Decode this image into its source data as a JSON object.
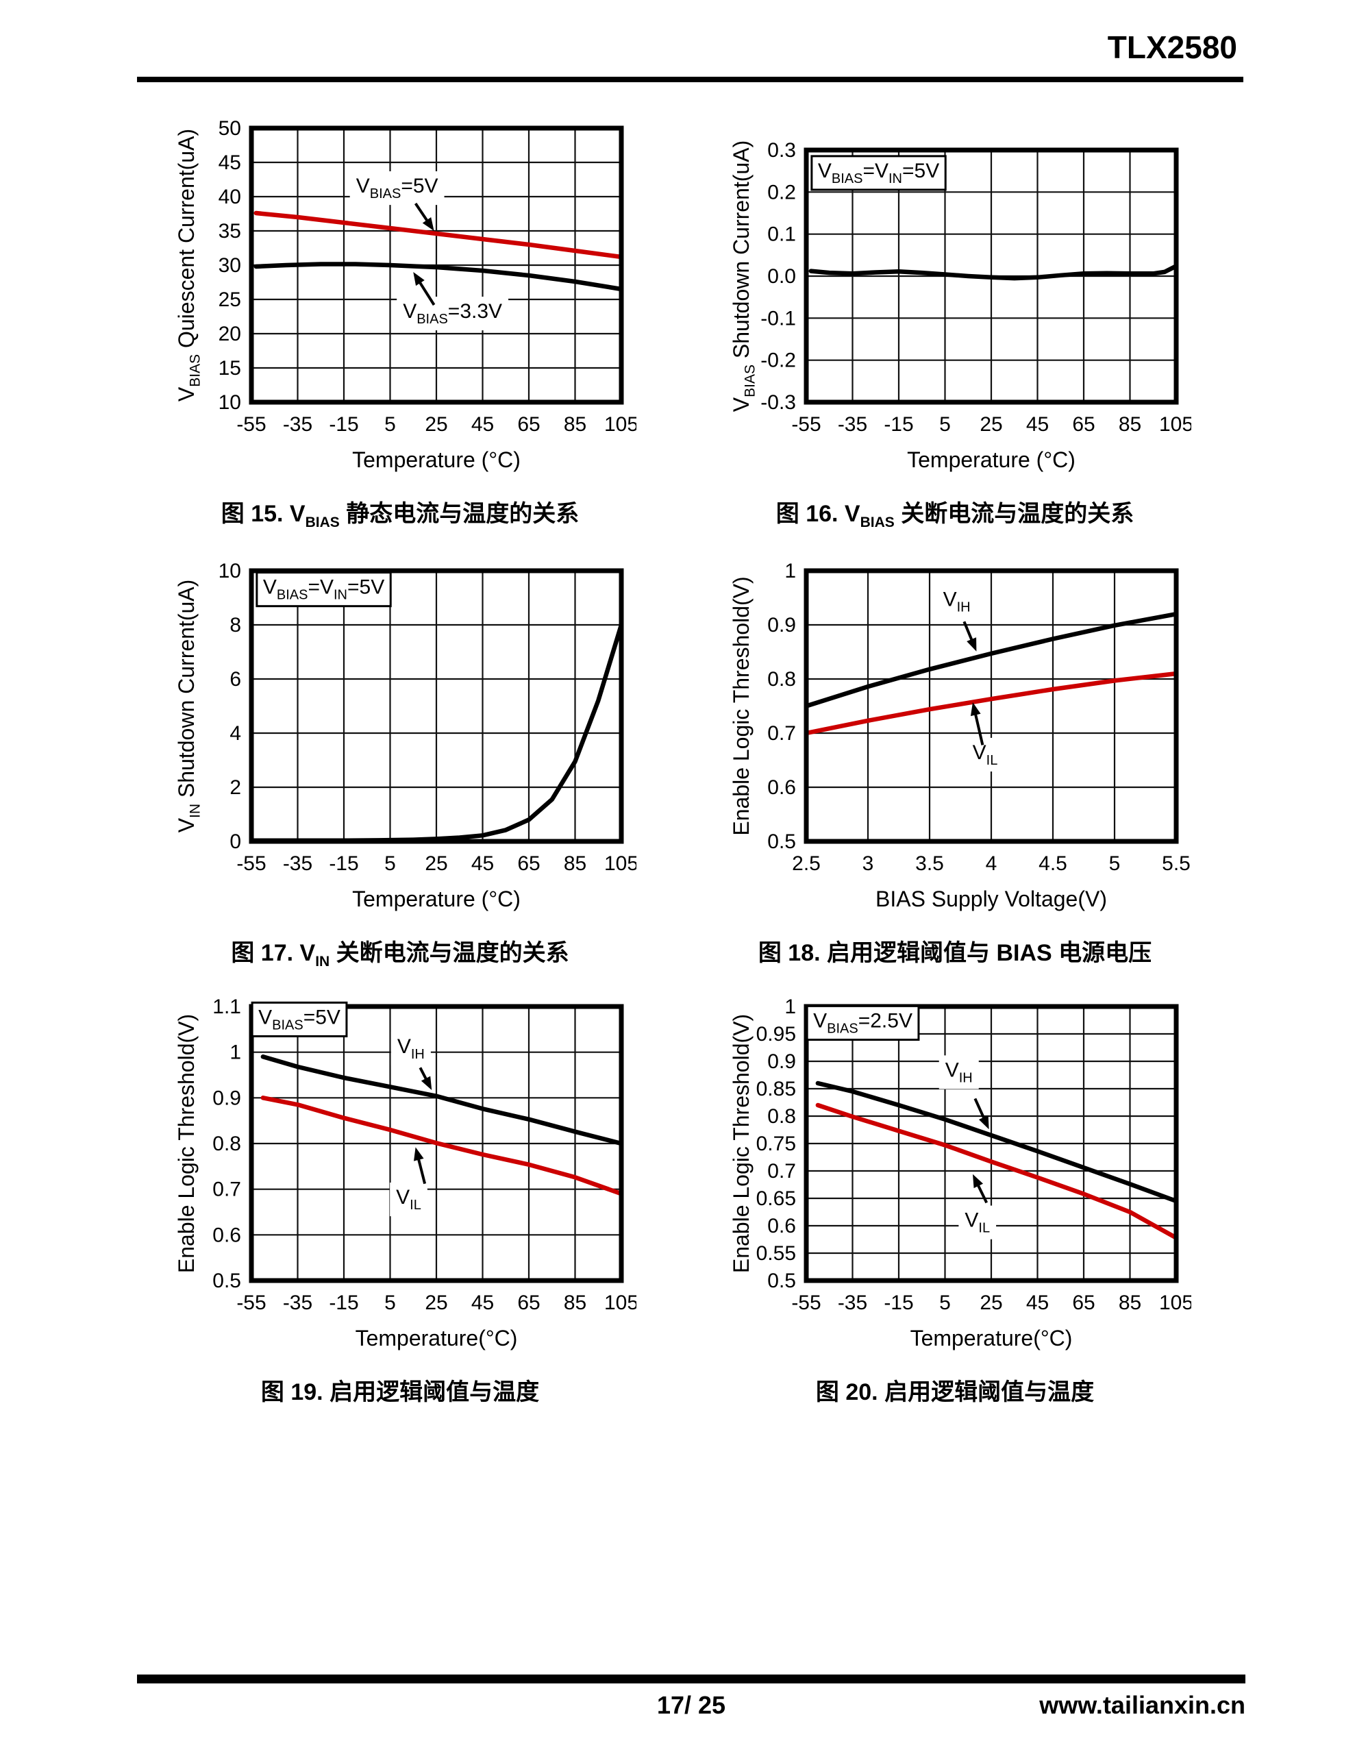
{
  "header": {
    "title": "TLX2580"
  },
  "footer": {
    "page_number": "17/ 25",
    "website": "www.tailianxin.cn"
  },
  "colors": {
    "curve_red": "#cc0000",
    "curve_black": "#000000",
    "grid": "#111111"
  },
  "chart_data": [
    {
      "id": "fig15",
      "type": "line",
      "caption": [
        {
          "t": "图 15. V"
        },
        {
          "t": "BIAS",
          "sub": true
        },
        {
          "t": " 静态电流与温度的关系"
        }
      ],
      "xlabel": "Temperature (°C)",
      "ylabel": [
        {
          "t": "V"
        },
        {
          "t": "BIAS",
          "sub": true
        },
        {
          "t": " Quiescent Current(uA)"
        }
      ],
      "xlim": [
        -55,
        105
      ],
      "ylim": [
        10,
        50
      ],
      "xticks": [
        "-55",
        "-35",
        "-15",
        "5",
        "25",
        "45",
        "65",
        "85",
        "105"
      ],
      "yticks": [
        "10",
        "15",
        "20",
        "25",
        "30",
        "35",
        "40",
        "45",
        "50"
      ],
      "series": [
        {
          "name": "VBIAS=5V",
          "color": "#cc0000",
          "points": [
            [
              -53,
              37.6
            ],
            [
              -35,
              37.0
            ],
            [
              -15,
              36.2
            ],
            [
              5,
              35.4
            ],
            [
              25,
              34.6
            ],
            [
              45,
              33.8
            ],
            [
              65,
              33.0
            ],
            [
              85,
              32.1
            ],
            [
              105,
              31.2
            ]
          ]
        },
        {
          "name": "VBIAS=3.3V",
          "color": "#000000",
          "points": [
            [
              -53,
              29.8
            ],
            [
              -40,
              30.0
            ],
            [
              -25,
              30.15
            ],
            [
              -10,
              30.15
            ],
            [
              5,
              30.0
            ],
            [
              25,
              29.7
            ],
            [
              45,
              29.2
            ],
            [
              65,
              28.5
            ],
            [
              85,
              27.6
            ],
            [
              105,
              26.5
            ]
          ]
        }
      ],
      "annotations": [
        {
          "label": "VBIAS=5V",
          "segments": [
            {
              "t": "V"
            },
            {
              "t": "BIAS",
              "sub": true
            },
            {
              "t": "=5V"
            }
          ],
          "x": 8,
          "y": 40.6,
          "anchor": "middle",
          "boxed": false,
          "arrow": [
            16,
            39.0,
            24,
            35.0
          ]
        },
        {
          "label": "VBIAS=3.3V",
          "segments": [
            {
              "t": "V"
            },
            {
              "t": "BIAS",
              "sub": true
            },
            {
              "t": "=3.3V"
            }
          ],
          "x": 32,
          "y": 22.3,
          "anchor": "middle",
          "boxed": false,
          "arrow": [
            24,
            24.2,
            15,
            29.0
          ]
        }
      ]
    },
    {
      "id": "fig16",
      "type": "line",
      "caption": [
        {
          "t": "图 16. V"
        },
        {
          "t": "BIAS",
          "sub": true
        },
        {
          "t": " 关断电流与温度的关系"
        }
      ],
      "xlabel": "Temperature (°C)",
      "ylabel": [
        {
          "t": "V"
        },
        {
          "t": "BIAS",
          "sub": true
        },
        {
          "t": " Shutdown Current(uA)"
        }
      ],
      "xlim": [
        -55,
        105
      ],
      "ylim": [
        -0.3,
        0.3
      ],
      "xticks": [
        "-55",
        "-35",
        "-15",
        "5",
        "25",
        "45",
        "65",
        "85",
        "105"
      ],
      "yticks": [
        "-0.3",
        "-0.2",
        "-0.1",
        "0.0",
        "0.1",
        "0.2",
        "0.3"
      ],
      "series": [
        {
          "name": "VBIAS shutdown current",
          "color": "#000000",
          "points": [
            [
              -53,
              0.012
            ],
            [
              -45,
              0.008
            ],
            [
              -35,
              0.006
            ],
            [
              -25,
              0.009
            ],
            [
              -15,
              0.011
            ],
            [
              -5,
              0.008
            ],
            [
              5,
              0.004
            ],
            [
              15,
              0.0
            ],
            [
              25,
              -0.003
            ],
            [
              35,
              -0.005
            ],
            [
              45,
              -0.003
            ],
            [
              55,
              0.002
            ],
            [
              65,
              0.006
            ],
            [
              75,
              0.007
            ],
            [
              85,
              0.006
            ],
            [
              95,
              0.006
            ],
            [
              100,
              0.01
            ],
            [
              105,
              0.024
            ]
          ]
        }
      ],
      "annotations": [
        {
          "label": "VBIAS=VIN=5V",
          "segments": [
            {
              "t": "V"
            },
            {
              "t": "BIAS",
              "sub": true
            },
            {
              "t": "=V"
            },
            {
              "t": "IN",
              "sub": true
            },
            {
              "t": "=5V"
            }
          ],
          "x": -50,
          "y": 0.235,
          "anchor": "start",
          "boxed": true
        }
      ]
    },
    {
      "id": "fig17",
      "type": "line",
      "caption": [
        {
          "t": "图 17. V"
        },
        {
          "t": "IN",
          "sub": true
        },
        {
          "t": " 关断电流与温度的关系"
        }
      ],
      "xlabel": "Temperature (°C)",
      "ylabel": [
        {
          "t": "V"
        },
        {
          "t": "IN",
          "sub": true
        },
        {
          "t": " Shutdown Current(uA)"
        }
      ],
      "xlim": [
        -55,
        105
      ],
      "ylim": [
        0,
        10
      ],
      "xticks": [
        "-55",
        "-35",
        "-15",
        "5",
        "25",
        "45",
        "65",
        "85",
        "105"
      ],
      "yticks": [
        "0",
        "2",
        "4",
        "6",
        "8",
        "10"
      ],
      "series": [
        {
          "name": "VIN shutdown current",
          "color": "#000000",
          "points": [
            [
              -55,
              0.03
            ],
            [
              -35,
              0.03
            ],
            [
              -15,
              0.03
            ],
            [
              0,
              0.04
            ],
            [
              15,
              0.06
            ],
            [
              25,
              0.09
            ],
            [
              35,
              0.14
            ],
            [
              45,
              0.22
            ],
            [
              55,
              0.42
            ],
            [
              65,
              0.8
            ],
            [
              75,
              1.55
            ],
            [
              85,
              2.95
            ],
            [
              95,
              5.2
            ],
            [
              105,
              8.0
            ]
          ]
        }
      ],
      "annotations": [
        {
          "label": "VBIAS=VIN=5V",
          "segments": [
            {
              "t": "V"
            },
            {
              "t": "BIAS",
              "sub": true
            },
            {
              "t": "=V"
            },
            {
              "t": "IN",
              "sub": true
            },
            {
              "t": "=5V"
            }
          ],
          "x": -50,
          "y": 9.15,
          "anchor": "start",
          "boxed": true
        }
      ]
    },
    {
      "id": "fig18",
      "type": "line",
      "caption": [
        {
          "t": "图 18. 启用逻辑阈值与 BIAS 电源电压"
        }
      ],
      "xlabel": "BIAS Supply Voltage(V)",
      "ylabel": [
        {
          "t": "Enable Logic Threshold(V)"
        }
      ],
      "xlim": [
        2.5,
        5.5
      ],
      "ylim": [
        0.5,
        1
      ],
      "xticks": [
        "2.5",
        "3",
        "3.5",
        "4",
        "4.5",
        "5",
        "5.5"
      ],
      "yticks": [
        "0.5",
        "0.6",
        "0.7",
        "0.8",
        "0.9",
        "1"
      ],
      "series": [
        {
          "name": "VIH",
          "color": "#000000",
          "points": [
            [
              2.5,
              0.75
            ],
            [
              3,
              0.786
            ],
            [
              3.5,
              0.818
            ],
            [
              4,
              0.847
            ],
            [
              4.5,
              0.874
            ],
            [
              5,
              0.899
            ],
            [
              5.5,
              0.92
            ]
          ]
        },
        {
          "name": "VIL",
          "color": "#cc0000",
          "points": [
            [
              2.5,
              0.7
            ],
            [
              3,
              0.723
            ],
            [
              3.5,
              0.744
            ],
            [
              4,
              0.763
            ],
            [
              4.5,
              0.781
            ],
            [
              5,
              0.797
            ],
            [
              5.5,
              0.81
            ]
          ]
        }
      ],
      "annotations": [
        {
          "label": "VIH",
          "segments": [
            {
              "t": "V"
            },
            {
              "t": "IH",
              "sub": true
            }
          ],
          "x": 3.72,
          "y": 0.935,
          "anchor": "middle",
          "boxed": false,
          "arrow": [
            3.78,
            0.906,
            3.88,
            0.851
          ]
        },
        {
          "label": "VIL",
          "segments": [
            {
              "t": "V"
            },
            {
              "t": "IL",
              "sub": true
            }
          ],
          "x": 3.95,
          "y": 0.652,
          "anchor": "middle",
          "boxed": false,
          "arrow": [
            3.93,
            0.678,
            3.85,
            0.757
          ]
        }
      ]
    },
    {
      "id": "fig19",
      "type": "line",
      "caption": [
        {
          "t": "图 19. 启用逻辑阈值与温度"
        }
      ],
      "xlabel": "Temperature(°C)",
      "ylabel": [
        {
          "t": "Enable Logic Threshold(V)"
        }
      ],
      "xlim": [
        -55,
        105
      ],
      "ylim": [
        0.5,
        1.1
      ],
      "xticks": [
        "-55",
        "-35",
        "-15",
        "5",
        "25",
        "45",
        "65",
        "85",
        "105"
      ],
      "yticks": [
        "0.5",
        "0.6",
        "0.7",
        "0.8",
        "0.9",
        "1",
        "1.1"
      ],
      "series": [
        {
          "name": "VIH",
          "color": "#000000",
          "points": [
            [
              -50,
              0.99
            ],
            [
              -35,
              0.968
            ],
            [
              -15,
              0.944
            ],
            [
              5,
              0.924
            ],
            [
              25,
              0.904
            ],
            [
              45,
              0.876
            ],
            [
              65,
              0.853
            ],
            [
              85,
              0.826
            ],
            [
              105,
              0.8
            ]
          ]
        },
        {
          "name": "VIL",
          "color": "#cc0000",
          "points": [
            [
              -50,
              0.9
            ],
            [
              -35,
              0.885
            ],
            [
              -15,
              0.856
            ],
            [
              5,
              0.83
            ],
            [
              25,
              0.801
            ],
            [
              45,
              0.776
            ],
            [
              65,
              0.754
            ],
            [
              85,
              0.726
            ],
            [
              105,
              0.69
            ]
          ]
        }
      ],
      "annotations": [
        {
          "label": "VBIAS=5V",
          "segments": [
            {
              "t": "V"
            },
            {
              "t": "BIAS",
              "sub": true
            },
            {
              "t": "=5V"
            }
          ],
          "x": -52,
          "y": 1.062,
          "anchor": "start",
          "boxed": true
        },
        {
          "label": "VIH",
          "segments": [
            {
              "t": "V"
            },
            {
              "t": "IH",
              "sub": true
            }
          ],
          "x": 14,
          "y": 0.998,
          "anchor": "middle",
          "boxed": false,
          "arrow": [
            18,
            0.966,
            23,
            0.917
          ]
        },
        {
          "label": "VIL",
          "segments": [
            {
              "t": "V"
            },
            {
              "t": "IL",
              "sub": true
            }
          ],
          "x": 13,
          "y": 0.668,
          "anchor": "middle",
          "boxed": false,
          "arrow": [
            20,
            0.712,
            16,
            0.792
          ]
        }
      ]
    },
    {
      "id": "fig20",
      "type": "line",
      "caption": [
        {
          "t": "图 20. 启用逻辑阈值与温度"
        }
      ],
      "xlabel": "Temperature(°C)",
      "ylabel": [
        {
          "t": "Enable Logic Threshold(V)"
        }
      ],
      "xlim": [
        -55,
        105
      ],
      "ylim": [
        0.5,
        1
      ],
      "xticks": [
        "-55",
        "-35",
        "-15",
        "5",
        "25",
        "45",
        "65",
        "85",
        "105"
      ],
      "yticks": [
        "0.5",
        "0.55",
        "0.6",
        "0.65",
        "0.7",
        "0.75",
        "0.8",
        "0.85",
        "0.9",
        "0.95",
        "1"
      ],
      "series": [
        {
          "name": "VIH",
          "color": "#000000",
          "points": [
            [
              -50,
              0.86
            ],
            [
              -35,
              0.845
            ],
            [
              -15,
              0.82
            ],
            [
              5,
              0.794
            ],
            [
              25,
              0.765
            ],
            [
              45,
              0.736
            ],
            [
              65,
              0.706
            ],
            [
              85,
              0.676
            ],
            [
              105,
              0.645
            ]
          ]
        },
        {
          "name": "VIL",
          "color": "#cc0000",
          "points": [
            [
              -50,
              0.82
            ],
            [
              -35,
              0.799
            ],
            [
              -15,
              0.773
            ],
            [
              5,
              0.747
            ],
            [
              25,
              0.717
            ],
            [
              45,
              0.688
            ],
            [
              65,
              0.658
            ],
            [
              85,
              0.625
            ],
            [
              105,
              0.578
            ]
          ]
        }
      ],
      "annotations": [
        {
          "label": "VBIAS=2.5V",
          "segments": [
            {
              "t": "V"
            },
            {
              "t": "BIAS",
              "sub": true
            },
            {
              "t": "=2.5V"
            }
          ],
          "x": -52,
          "y": 0.962,
          "anchor": "start",
          "boxed": true
        },
        {
          "label": "VIH",
          "segments": [
            {
              "t": "V"
            },
            {
              "t": "IH",
              "sub": true
            }
          ],
          "x": 11,
          "y": 0.872,
          "anchor": "middle",
          "boxed": false,
          "arrow": [
            18,
            0.832,
            24,
            0.776
          ]
        },
        {
          "label": "VIL",
          "segments": [
            {
              "t": "V"
            },
            {
              "t": "IL",
              "sub": true
            }
          ],
          "x": 19,
          "y": 0.598,
          "anchor": "middle",
          "boxed": false,
          "arrow": [
            23,
            0.642,
            17,
            0.694
          ]
        }
      ]
    }
  ]
}
